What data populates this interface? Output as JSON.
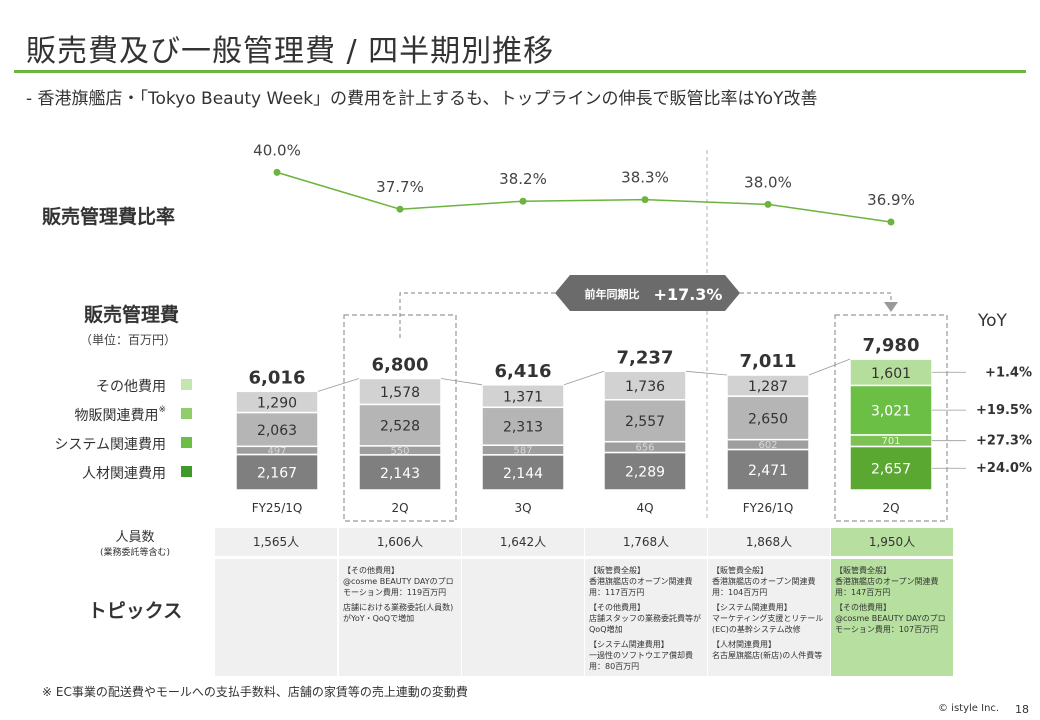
{
  "title": "販売費及び一般管理費 / 四半期別推移",
  "subtitle": "-  香港旗艦店・「Tokyo Beauty Week」の費用を計上するも、トップラインの伸長で販管比率はYoY改善",
  "ratio_label": "販売管理費比率",
  "sga_label": "販売管理費",
  "unit_label": "（単位：百万円）",
  "yoy_header": "YoY",
  "callout": {
    "prefix": "前年同期比",
    "value": "+17.3%"
  },
  "legend": [
    {
      "label": "その他費用",
      "asterisk": "",
      "color": "#c6e6b0"
    },
    {
      "label": "物販関連費用",
      "asterisk": "※",
      "color": "#8fce6a"
    },
    {
      "label": "システム関連費用",
      "asterisk": "",
      "color": "#6cbf45"
    },
    {
      "label": "人材関連費用",
      "asterisk": "",
      "color": "#3d9a2a"
    }
  ],
  "colors": {
    "accent": "#6cb33f",
    "gray_personnel": "#7f7f7f",
    "gray_system": "#9e9e9e",
    "gray_product": "#b5b5b5",
    "gray_other": "#d2d2d2",
    "green_personnel": "#5aa832",
    "green_system": "#7cc254",
    "green_product": "#6cbf45",
    "green_other": "#b5dd9c",
    "line": "#6cb33f",
    "callout_bg": "#6b6b6b",
    "highlight_cell": "#b7e0a0"
  },
  "chart_data": {
    "type": "bar",
    "stacked": true,
    "categories": [
      "FY25/1Q",
      "2Q",
      "3Q",
      "4Q",
      "FY26/1Q",
      "2Q"
    ],
    "series": [
      {
        "name": "人材関連費用",
        "values": [
          2167,
          2143,
          2144,
          2289,
          2471,
          2657
        ]
      },
      {
        "name": "システム関連費用",
        "values": [
          497,
          550,
          587,
          656,
          602,
          701
        ]
      },
      {
        "name": "物販関連費用",
        "values": [
          2063,
          2528,
          2313,
          2557,
          2650,
          3021
        ]
      },
      {
        "name": "その他費用",
        "values": [
          1290,
          1578,
          1371,
          1736,
          1287,
          1601
        ]
      }
    ],
    "totals": [
      6016,
      6800,
      6416,
      7237,
      7011,
      7980
    ],
    "value_labels": {
      "personnel": [
        "2,167",
        "2,143",
        "2,144",
        "2,289",
        "2,471",
        "2,657"
      ],
      "system": [
        "497",
        "550",
        "587",
        "656",
        "602",
        "701"
      ],
      "product": [
        "2,063",
        "2,528",
        "2,313",
        "2,557",
        "2,650",
        "3,021"
      ],
      "other": [
        "1,290",
        "1,578",
        "1,371",
        "1,736",
        "1,287",
        "1,601"
      ],
      "totals": [
        "6,016",
        "6,800",
        "6,416",
        "7,237",
        "7,011",
        "7,980"
      ]
    },
    "ratio_line": {
      "values": [
        40.0,
        37.7,
        38.2,
        38.3,
        38.0,
        36.9
      ],
      "labels": [
        "40.0%",
        "37.7%",
        "38.2%",
        "38.3%",
        "38.0%",
        "36.9%"
      ]
    },
    "yoy": [
      {
        "series": "その他費用",
        "value": "+1.4%"
      },
      {
        "series": "物販関連費用",
        "value": "+19.5%"
      },
      {
        "series": "システム関連費用",
        "value": "+27.3%"
      },
      {
        "series": "人材関連費用",
        "value": "+24.0%"
      }
    ]
  },
  "table": {
    "headcount_label": "人員数",
    "headcount_sub": "(業務委託等含む)",
    "headcount": [
      "1,565人",
      "1,606人",
      "1,642人",
      "1,768人",
      "1,868人",
      "1,950人"
    ],
    "topics_label": "トピックス",
    "topics": [
      [],
      [
        "【その他費用】\n@cosme BEAUTY DAYのプロモーション費用：119百万円",
        "店舗における業務委託(人員数)がYoY・QoQで増加"
      ],
      [],
      [
        "【販管費全般】\n香港旗艦店のオープン関連費用：117百万円",
        "【その他費用】\n店舗スタッフの業務委託費等がQoQ増加",
        "【システム関連費用】\n一過性のソフトウエア償却費用：80百万円"
      ],
      [
        "【販管費全般】\n香港旗艦店のオープン関連費用：104百万円",
        "【システム関連費用】\nマーケティング支援とリテール(EC)の基幹システム改修",
        "【人材関連費用】\n名古屋旗艦店(新店)の人件費等"
      ],
      [
        "【販管費全般】\n香港旗艦店のオープン関連費用：147百万円",
        "【その他費用】\n@cosme BEAUTY DAYのプロモーション費用：107百万円"
      ]
    ]
  },
  "footnote": "※  EC事業の配送費やモールへの支払手数料、店舗の家賃等の売上連動の変動費",
  "copyright": "© istyle Inc.",
  "page_number": "18"
}
